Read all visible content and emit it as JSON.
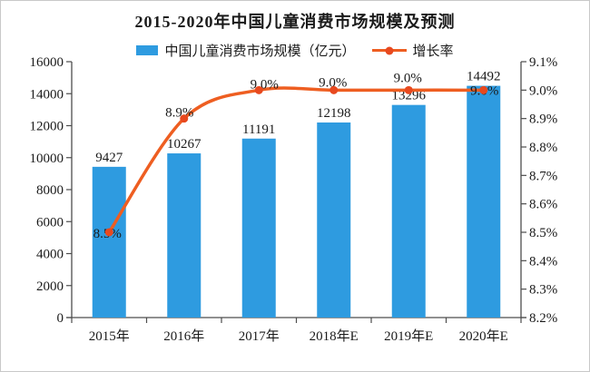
{
  "chart_data": {
    "type": "bar",
    "title": "2015-2020年中国儿童消费市场规模及预测",
    "categories": [
      "2015年",
      "2016年",
      "2017年",
      "2018年E",
      "2019年E",
      "2020年E"
    ],
    "series": [
      {
        "name": "中国儿童消费市场规模（亿元）",
        "chart_type": "bar",
        "axis": "left",
        "color": "#2E9BE0",
        "values": [
          9427,
          10267,
          11191,
          12198,
          13296,
          14492
        ],
        "data_labels": [
          "9427",
          "10267",
          "11191",
          "12198",
          "13296",
          "14492"
        ]
      },
      {
        "name": "增长率",
        "chart_type": "line",
        "axis": "right",
        "color": "#EE5E21",
        "marker_color": "#E8491F",
        "values": [
          8.5,
          8.9,
          9.0,
          9.0,
          9.0,
          9.0
        ],
        "data_labels": [
          "8.5%",
          "8.9%",
          "9.0%",
          "9.0%",
          "9.0%",
          "9.0%"
        ],
        "label_offsets": [
          [
            -2,
            1
          ],
          [
            -5,
            -7
          ],
          [
            6,
            -7
          ],
          [
            -1,
            -9
          ],
          [
            -1,
            -14
          ],
          [
            1,
            0
          ]
        ]
      }
    ],
    "left_axis": {
      "min": 0,
      "max": 16000,
      "ticks": [
        "0",
        "2000",
        "4000",
        "6000",
        "8000",
        "10000",
        "12000",
        "14000",
        "16000"
      ]
    },
    "right_axis": {
      "min": 8.2,
      "max": 9.1,
      "ticks": [
        "8.2%",
        "8.3%",
        "8.4%",
        "8.5%",
        "8.6%",
        "8.7%",
        "8.8%",
        "8.9%",
        "9.0%",
        "9.1%"
      ]
    },
    "grid": false,
    "legend_position": "top",
    "text_color": "#1a1a1a",
    "axis_color": "#4d4d4d"
  }
}
